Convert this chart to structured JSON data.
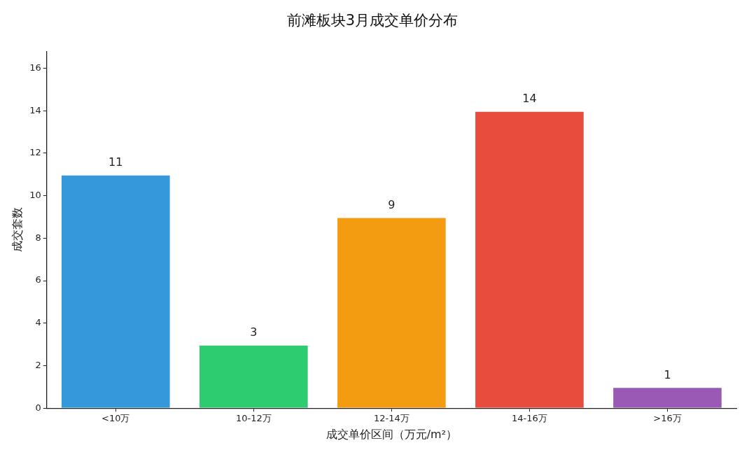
{
  "chart_data": {
    "type": "bar",
    "title": "前滩板块3月成交单价分布",
    "xlabel": "成交单价区间（万元/m²）",
    "ylabel": "成交套数",
    "categories": [
      "<10万",
      "10-12万",
      "12-14万",
      "14-16万",
      ">16万"
    ],
    "values": [
      11,
      3,
      9,
      14,
      1
    ],
    "colors": [
      "#3498db",
      "#2ecc71",
      "#f39c12",
      "#e74c3c",
      "#9b59b6"
    ],
    "ylim": [
      0,
      16.8
    ],
    "yticks": [
      0,
      2,
      4,
      6,
      8,
      10,
      12,
      14,
      16
    ],
    "grid": false,
    "legend": false,
    "data_labels": true
  }
}
